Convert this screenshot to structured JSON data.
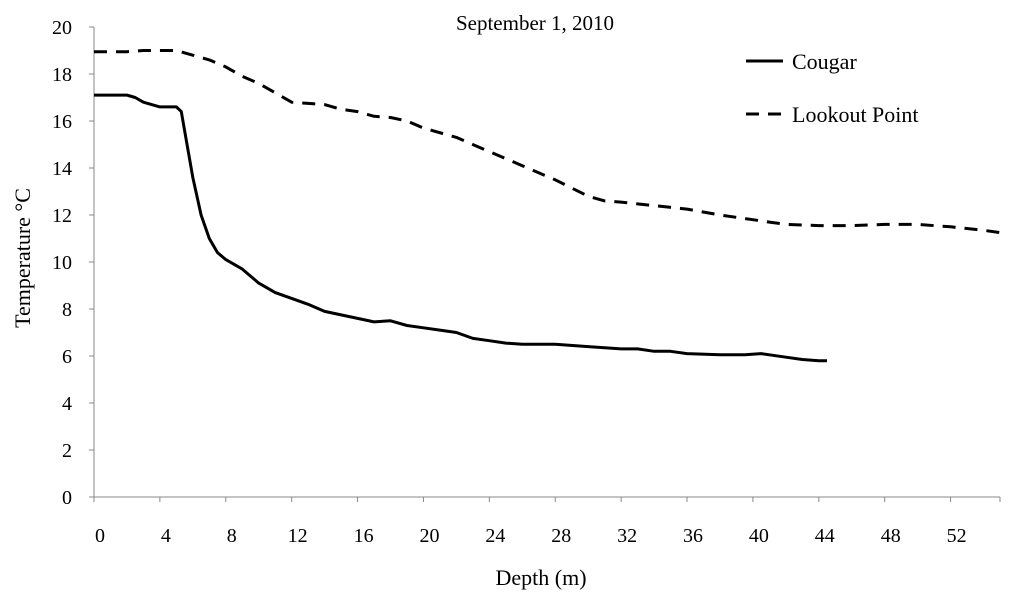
{
  "chart_data": {
    "type": "line",
    "title": "September 1, 2010",
    "xlabel": "Depth (m)",
    "ylabel": "Temperature °C",
    "xlim": [
      0,
      55
    ],
    "ylim": [
      0,
      20
    ],
    "x_ticks": [
      0,
      4,
      8,
      12,
      16,
      20,
      24,
      28,
      32,
      36,
      40,
      44,
      48,
      52
    ],
    "y_ticks": [
      0,
      2,
      4,
      6,
      8,
      10,
      12,
      14,
      16,
      18,
      20
    ],
    "grid": false,
    "legend_position": "top-right",
    "series": [
      {
        "name": "Cougar",
        "style": "solid",
        "color": "#000000",
        "points": [
          [
            0,
            17.1
          ],
          [
            1,
            17.1
          ],
          [
            2,
            17.1
          ],
          [
            2.5,
            17.0
          ],
          [
            3,
            16.8
          ],
          [
            4,
            16.6
          ],
          [
            4.5,
            16.6
          ],
          [
            5,
            16.6
          ],
          [
            5.3,
            16.4
          ],
          [
            5.6,
            15.2
          ],
          [
            6,
            13.6
          ],
          [
            6.5,
            12.0
          ],
          [
            7,
            11.0
          ],
          [
            7.5,
            10.4
          ],
          [
            8,
            10.1
          ],
          [
            9,
            9.7
          ],
          [
            10,
            9.1
          ],
          [
            11,
            8.7
          ],
          [
            12,
            8.45
          ],
          [
            13,
            8.2
          ],
          [
            14,
            7.9
          ],
          [
            15,
            7.75
          ],
          [
            16,
            7.6
          ],
          [
            17,
            7.45
          ],
          [
            18,
            7.5
          ],
          [
            19,
            7.3
          ],
          [
            20,
            7.2
          ],
          [
            21,
            7.1
          ],
          [
            22,
            7.0
          ],
          [
            23,
            6.75
          ],
          [
            24,
            6.65
          ],
          [
            25,
            6.55
          ],
          [
            26,
            6.5
          ],
          [
            28,
            6.5
          ],
          [
            30,
            6.4
          ],
          [
            31,
            6.35
          ],
          [
            32,
            6.3
          ],
          [
            33,
            6.3
          ],
          [
            34,
            6.2
          ],
          [
            35,
            6.2
          ],
          [
            36,
            6.1
          ],
          [
            38,
            6.05
          ],
          [
            39.5,
            6.05
          ],
          [
            40.5,
            6.1
          ],
          [
            42,
            5.95
          ],
          [
            43,
            5.85
          ],
          [
            44,
            5.8
          ],
          [
            44.5,
            5.8
          ]
        ]
      },
      {
        "name": "Lookout Point",
        "style": "dashed",
        "color": "#000000",
        "points": [
          [
            0,
            18.95
          ],
          [
            2,
            18.95
          ],
          [
            3,
            19.0
          ],
          [
            5,
            19.0
          ],
          [
            6,
            18.8
          ],
          [
            7,
            18.6
          ],
          [
            8,
            18.3
          ],
          [
            9,
            17.9
          ],
          [
            10,
            17.6
          ],
          [
            11,
            17.2
          ],
          [
            12,
            16.8
          ],
          [
            13,
            16.75
          ],
          [
            14,
            16.7
          ],
          [
            15,
            16.5
          ],
          [
            16,
            16.4
          ],
          [
            17,
            16.2
          ],
          [
            18,
            16.15
          ],
          [
            19,
            16.0
          ],
          [
            20,
            15.7
          ],
          [
            22,
            15.3
          ],
          [
            24,
            14.7
          ],
          [
            26,
            14.1
          ],
          [
            28,
            13.5
          ],
          [
            30,
            12.8
          ],
          [
            31,
            12.6
          ],
          [
            32,
            12.55
          ],
          [
            34,
            12.4
          ],
          [
            36,
            12.25
          ],
          [
            38,
            12.0
          ],
          [
            40,
            11.8
          ],
          [
            41,
            11.7
          ],
          [
            42,
            11.6
          ],
          [
            44,
            11.55
          ],
          [
            46,
            11.55
          ],
          [
            48,
            11.6
          ],
          [
            50,
            11.6
          ],
          [
            52,
            11.5
          ],
          [
            54,
            11.35
          ],
          [
            55,
            11.25
          ]
        ]
      }
    ]
  }
}
